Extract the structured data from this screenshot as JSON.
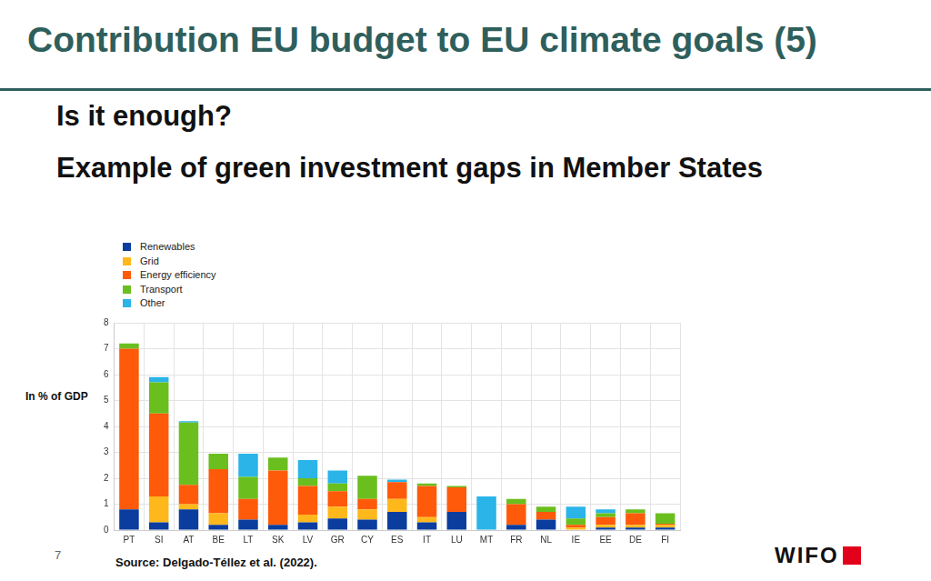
{
  "slide": {
    "title": "Contribution EU budget to EU climate goals (5)",
    "subtitle": "Is it enough?",
    "heading": "Example of green investment gaps in Member States",
    "page_number": "7",
    "source": "Source: Delgado-Téllez et al. (2022).",
    "logo": "WIFO"
  },
  "chart_data": {
    "type": "bar",
    "stacked": true,
    "grid": true,
    "legend": "top-left",
    "y_label": "In % of GDP",
    "categories": [
      "PT",
      "SI",
      "AT",
      "BE",
      "LT",
      "SK",
      "LV",
      "GR",
      "CY",
      "ES",
      "IT",
      "LU",
      "MT",
      "FR",
      "NL",
      "IE",
      "EE",
      "DE",
      "FI"
    ],
    "ylim": [
      0,
      8
    ],
    "yticks": [
      0,
      1,
      2,
      3,
      4,
      5,
      6,
      7,
      8
    ],
    "series": [
      {
        "name": "Renewables",
        "color": "#0b3d9e",
        "values": [
          0.8,
          0.3,
          0.8,
          0.2,
          0.4,
          0.2,
          0.3,
          0.45,
          0.4,
          0.7,
          0.3,
          0.7,
          0,
          0.2,
          0.4,
          0,
          0.1,
          0.1,
          0.1
        ]
      },
      {
        "name": "Grid",
        "color": "#ffb81c",
        "values": [
          0,
          1.0,
          0.2,
          0.45,
          0,
          0,
          0.3,
          0.45,
          0.4,
          0.5,
          0.2,
          0,
          0,
          0,
          0,
          0.1,
          0.1,
          0.1,
          0.1
        ]
      },
      {
        "name": "Energy efficiency",
        "color": "#ff5a0a",
        "values": [
          6.2,
          3.2,
          0.75,
          1.7,
          0.8,
          2.1,
          1.1,
          0.6,
          0.4,
          0.65,
          1.2,
          0.95,
          0,
          0.8,
          0.3,
          0.1,
          0.3,
          0.45,
          0.05
        ]
      },
      {
        "name": "Transport",
        "color": "#6abf1e",
        "values": [
          0.2,
          1.2,
          2.4,
          0.6,
          0.85,
          0.5,
          0.3,
          0.3,
          0.9,
          0,
          0.1,
          0.05,
          0,
          0.2,
          0.2,
          0.25,
          0.15,
          0.15,
          0.4
        ]
      },
      {
        "name": "Other",
        "color": "#2ab4e8",
        "values": [
          0,
          0.2,
          0.05,
          0,
          0.9,
          0,
          0.7,
          0.5,
          0,
          0.1,
          0,
          0,
          1.3,
          0,
          0,
          0.45,
          0.15,
          0,
          0
        ]
      }
    ]
  }
}
